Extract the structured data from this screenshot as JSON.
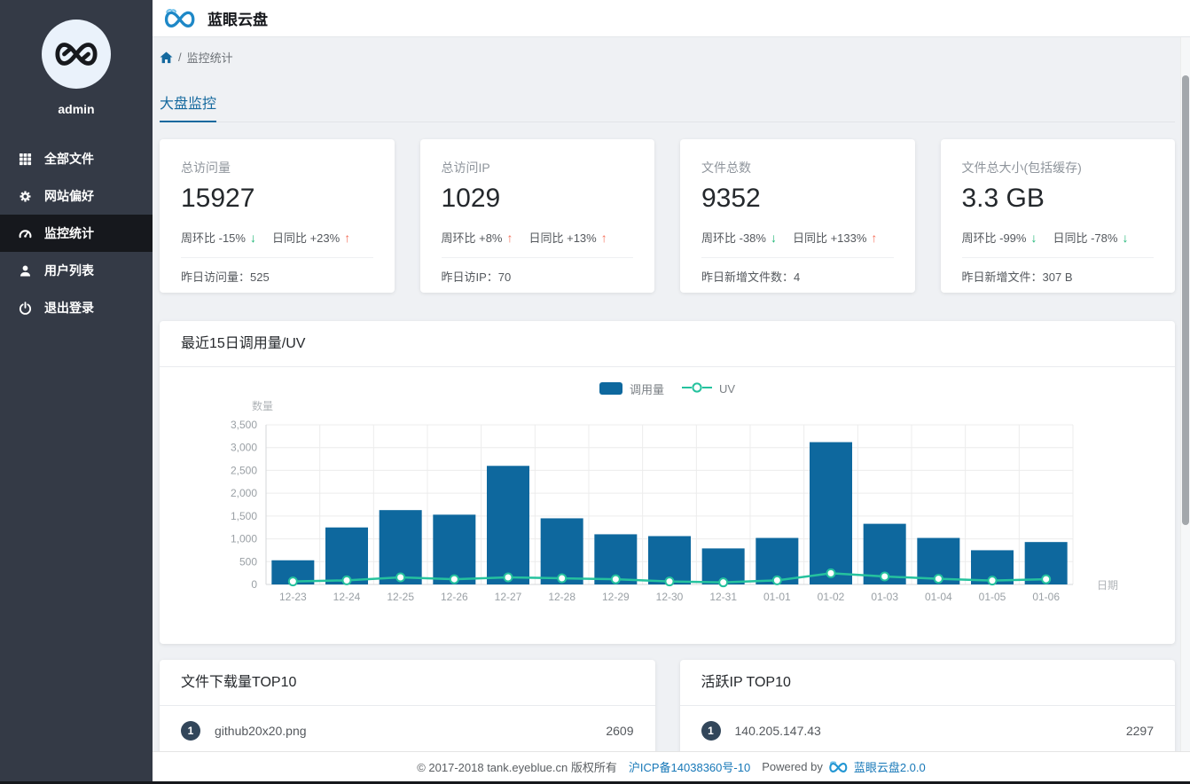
{
  "app": {
    "title": "蓝眼云盘"
  },
  "sidebar": {
    "username": "admin",
    "items": [
      {
        "key": "all-files",
        "label": "全部文件",
        "icon": "grid-icon",
        "active": false
      },
      {
        "key": "preferences",
        "label": "网站偏好",
        "icon": "gear-icon",
        "active": false
      },
      {
        "key": "monitoring",
        "label": "监控统计",
        "icon": "dashboard-icon",
        "active": true
      },
      {
        "key": "users",
        "label": "用户列表",
        "icon": "user-icon",
        "active": false
      },
      {
        "key": "logout",
        "label": "退出登录",
        "icon": "power-icon",
        "active": false
      }
    ]
  },
  "breadcrumb": {
    "separator": "/",
    "label": "监控统计"
  },
  "tabs": [
    {
      "label": "大盘监控",
      "active": true
    }
  ],
  "stat_cards": [
    {
      "label": "总访问量",
      "value": "15927",
      "week_text": "周环比 -15%",
      "week_dir": "down",
      "day_text": "日同比 +23%",
      "day_dir": "up",
      "footer_label": "昨日访问量：",
      "footer_value": "525"
    },
    {
      "label": "总访问IP",
      "value": "1029",
      "week_text": "周环比 +8%",
      "week_dir": "up",
      "day_text": "日同比 +13%",
      "day_dir": "up",
      "footer_label": "昨日访IP：",
      "footer_value": "70"
    },
    {
      "label": "文件总数",
      "value": "9352",
      "week_text": "周环比 -38%",
      "week_dir": "down",
      "day_text": "日同比 +133%",
      "day_dir": "up",
      "footer_label": "昨日新增文件数：",
      "footer_value": "4"
    },
    {
      "label": "文件总大小(包括缓存)",
      "value": "3.3 GB",
      "week_text": "周环比 -99%",
      "week_dir": "down",
      "day_text": "日同比 -78%",
      "day_dir": "down",
      "footer_label": "昨日新增文件：",
      "footer_value": "307 B"
    }
  ],
  "chart_data": {
    "type": "bar",
    "title": "最近15日调用量/UV",
    "categories": [
      "12-23",
      "12-24",
      "12-25",
      "12-26",
      "12-27",
      "12-28",
      "12-29",
      "12-30",
      "12-31",
      "01-01",
      "01-02",
      "01-03",
      "01-04",
      "01-05",
      "01-06"
    ],
    "series": [
      {
        "name": "调用量",
        "type": "bar",
        "values": [
          530,
          1250,
          1630,
          1530,
          2600,
          1450,
          1100,
          1060,
          790,
          1020,
          3120,
          1330,
          1020,
          750,
          930
        ]
      },
      {
        "name": "UV",
        "type": "line",
        "values": [
          65,
          90,
          155,
          115,
          155,
          135,
          115,
          65,
          45,
          90,
          245,
          175,
          125,
          85,
          115
        ]
      }
    ],
    "xlabel": "日期",
    "ylabel": "数量",
    "ylim": [
      0,
      3500
    ],
    "ytick_step": 500,
    "grid": true,
    "legend_position": "top-center"
  },
  "top_lists": [
    {
      "title": "文件下载量TOP10",
      "items": [
        {
          "rank": "1",
          "name": "github20x20.png",
          "value": "2609"
        }
      ]
    },
    {
      "title": "活跃IP TOP10",
      "items": [
        {
          "rank": "1",
          "name": "140.205.147.43",
          "value": "2297"
        }
      ]
    }
  ],
  "footer": {
    "copyright": "© 2017-2018 tank.eyeblue.cn 版权所有",
    "icp_link": "沪ICP备14038360号-10",
    "powered_by": "Powered by",
    "brand_link": "蓝眼云盘2.0.0"
  },
  "colors": {
    "accent": "#15699E",
    "bar": "#0E689E",
    "line": "#25C29E",
    "up": "#F4705B",
    "down": "#1CB574",
    "sidebar": "#343A46",
    "sidebar_active": "#16181D",
    "badge": "#32465A"
  }
}
